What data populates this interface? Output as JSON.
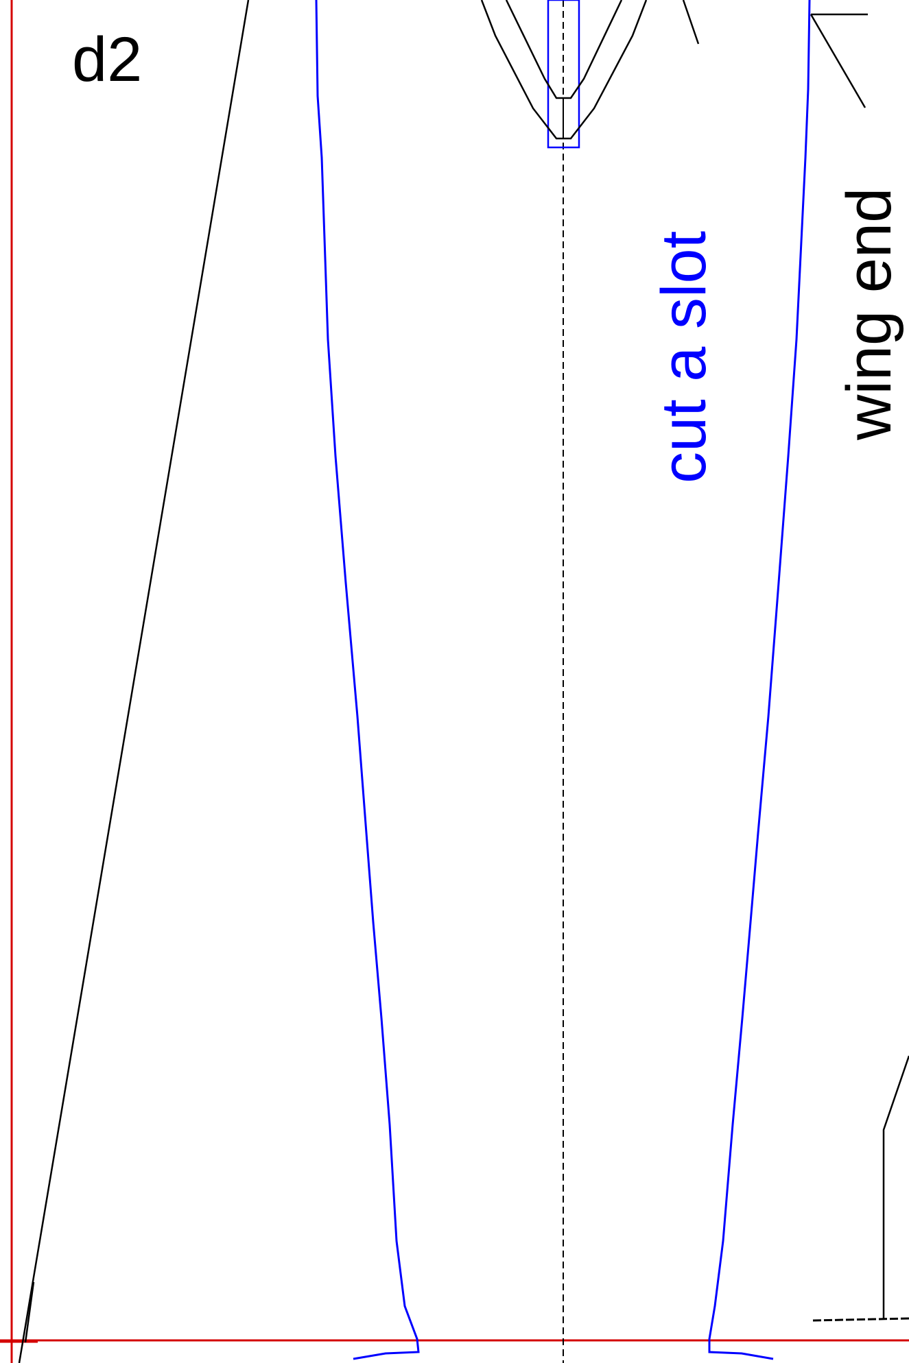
{
  "sheet": {
    "label": "d2",
    "border_color": "#d40000"
  },
  "annotations": {
    "slot_label": "cut a slot",
    "slot_color": "#0000ff",
    "wing_end_label": "wing end",
    "wing_end_color": "#000000"
  },
  "colors": {
    "outline": "#0000ff",
    "guide": "#000000",
    "border": "#d40000",
    "background": "#ffffff"
  }
}
